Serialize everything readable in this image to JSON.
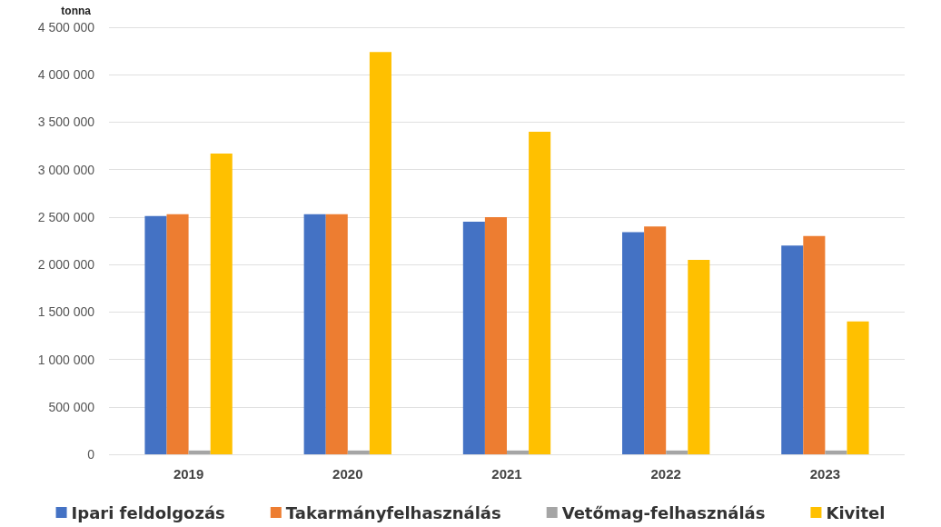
{
  "chart_data": {
    "type": "bar",
    "ylabel": "tonna",
    "categories": [
      "2019",
      "2020",
      "2021",
      "2022",
      "2023"
    ],
    "series": [
      {
        "name": "Ipari feldolgozás",
        "color": "#4472c4",
        "values": [
          2510000,
          2530000,
          2450000,
          2340000,
          2200000
        ]
      },
      {
        "name": "Takarmányfelhasználás",
        "color": "#ed7d31",
        "values": [
          2530000,
          2530000,
          2500000,
          2400000,
          2300000
        ]
      },
      {
        "name": "Vetőmag-felhasználás",
        "color": "#a5a5a5",
        "values": [
          40000,
          40000,
          40000,
          40000,
          40000
        ]
      },
      {
        "name": "Kivitel",
        "color": "#ffc000",
        "values": [
          3170000,
          4240000,
          3400000,
          2050000,
          1400000
        ]
      }
    ],
    "ylim": [
      0,
      4500000
    ],
    "yticks": [
      {
        "value": 0,
        "label": "0"
      },
      {
        "value": 500000,
        "label": "500 000"
      },
      {
        "value": 1000000,
        "label": "1 000 000"
      },
      {
        "value": 1500000,
        "label": "1 500 000"
      },
      {
        "value": 2000000,
        "label": "2 000 000"
      },
      {
        "value": 2500000,
        "label": "2 500 000"
      },
      {
        "value": 3000000,
        "label": "3 000 000"
      },
      {
        "value": 3500000,
        "label": "3 500 000"
      },
      {
        "value": 4000000,
        "label": "4 000 000"
      },
      {
        "value": 4500000,
        "label": "4 500 000"
      }
    ],
    "grid": "y",
    "legend": "bottom"
  }
}
